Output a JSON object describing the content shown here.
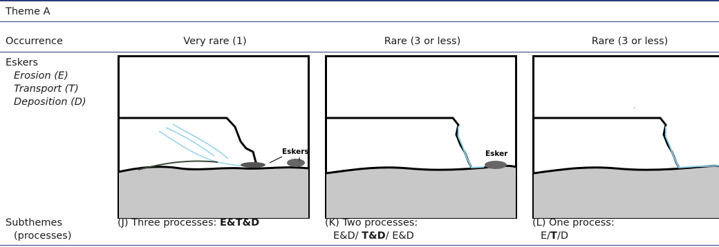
{
  "theme_title": "Theme A",
  "header": {
    "row_label": "Occurrence",
    "columns": [
      "Very rare (1)",
      "Rare (3 or less)",
      "Rare (3 or less)"
    ]
  },
  "eskers_row": {
    "label": "Eskers",
    "processes": [
      "Erosion (E)",
      "Transport (T)",
      "Deposition (D)"
    ]
  },
  "panels": [
    {
      "labels": [
        "Eskers"
      ]
    },
    {
      "labels": [
        "Esker"
      ]
    },
    {
      "labels": []
    }
  ],
  "subthemes": {
    "label_line1": "Subthemes",
    "label_line2": "(processes)",
    "J": {
      "prefix": "(J) Three processes: ",
      "bold": "E&T&D"
    },
    "K": {
      "line1": "(K) Two processes:",
      "pre": "E&D/ ",
      "bold": "T&D",
      "post": "/ E&D"
    },
    "L": {
      "line1": "(L) One process:",
      "pre": "E/",
      "bold": "T",
      "post": "/D"
    }
  },
  "colors": {
    "rule": "#2b3a7a",
    "ground": "#c8c8c8",
    "ice_flow": "#8fd0e8"
  }
}
